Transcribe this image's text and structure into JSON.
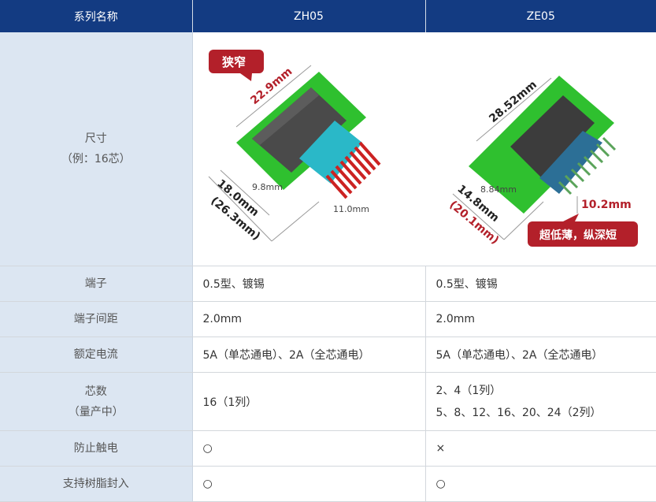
{
  "header": {
    "label_col": "系列名称",
    "col1": "ZH05",
    "col2": "ZE05"
  },
  "colors": {
    "header_bg": "#133b82",
    "label_bg": "#dce6f2",
    "callout_red": "#b3202a",
    "pcb_green": "#2fc02f",
    "zh05_housing": "#2ab8c8",
    "ze05_housing": "#2c6f96",
    "zh05_pins": "#cc2222",
    "ze05_pins": "#5aa35a"
  },
  "rows": [
    {
      "label": "尺寸",
      "sublabel": "（例：16芯）",
      "zh05": {
        "callout": "狭窄",
        "dims": [
          "22.9mm",
          "9.8mm",
          "18.0mm",
          "(26.3mm)",
          "11.0mm"
        ]
      },
      "ze05": {
        "callout": "超低薄，纵深短",
        "dims": [
          "28.52mm",
          "8.84mm",
          "14.8mm",
          "(20.1mm)",
          "10.2mm"
        ]
      }
    },
    {
      "label": "端子",
      "zh05": "0.5型、镀锡",
      "ze05": "0.5型、镀锡"
    },
    {
      "label": "端子间距",
      "zh05": "2.0mm",
      "ze05": "2.0mm"
    },
    {
      "label": "额定电流",
      "zh05": "5A（单芯通电）、2A（全芯通电）",
      "ze05": "5A（单芯通电）、2A（全芯通电）"
    },
    {
      "label": "芯数",
      "sublabel": "（量产中）",
      "zh05": "16（1列）",
      "ze05": [
        "2、4（1列）",
        "5、8、12、16、20、24（2列）"
      ]
    },
    {
      "label": "防止触电",
      "zh05": "○",
      "ze05": "×"
    },
    {
      "label": "支持树脂封入",
      "zh05": "○",
      "ze05": "○"
    }
  ]
}
